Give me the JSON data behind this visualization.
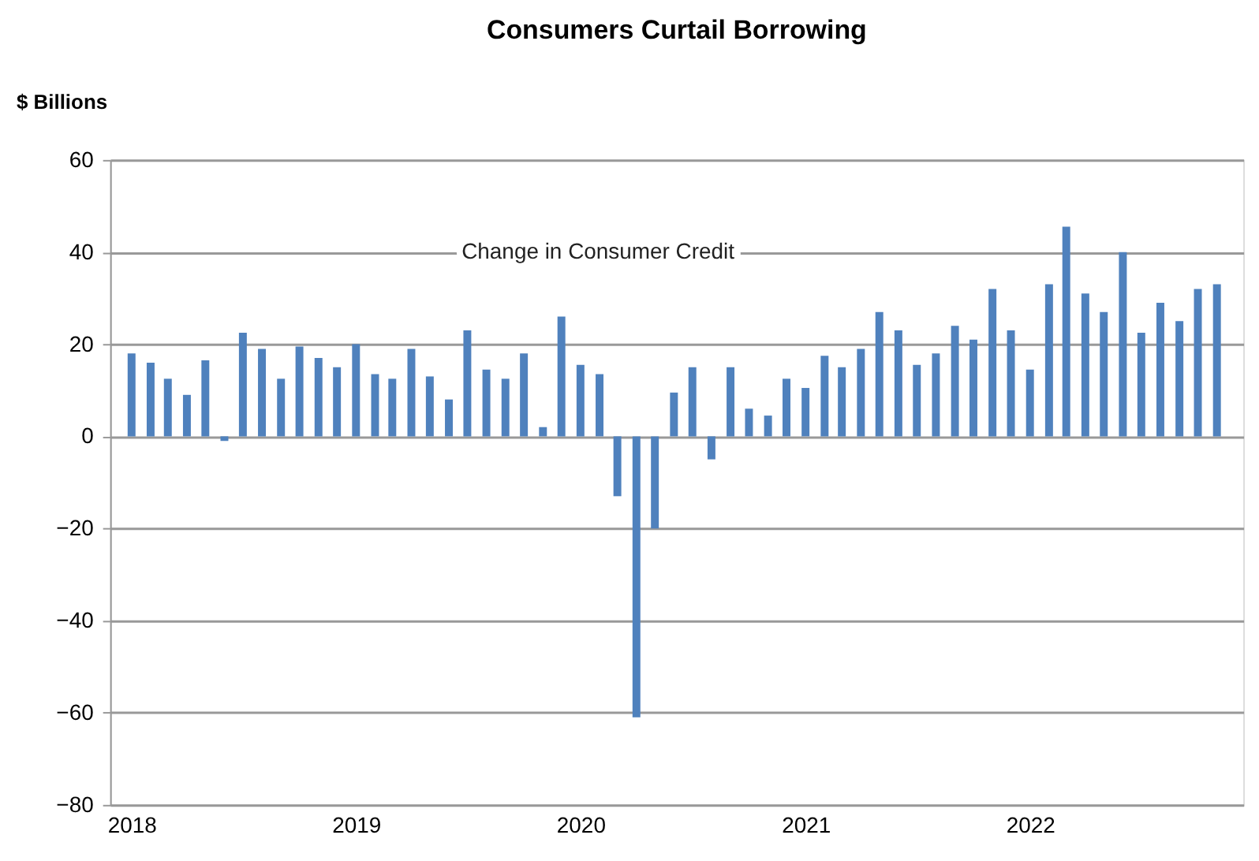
{
  "chart_data": {
    "type": "bar",
    "title": "Consumers  Curtail Borrowing",
    "ylabel": "$ Billions",
    "x": [
      "2018-01",
      "2018-02",
      "2018-03",
      "2018-04",
      "2018-05",
      "2018-06",
      "2018-07",
      "2018-08",
      "2018-09",
      "2018-10",
      "2018-11",
      "2018-12",
      "2019-01",
      "2019-02",
      "2019-03",
      "2019-04",
      "2019-05",
      "2019-06",
      "2019-07",
      "2019-08",
      "2019-09",
      "2019-10",
      "2019-11",
      "2019-12",
      "2020-01",
      "2020-02",
      "2020-03",
      "2020-04",
      "2020-05",
      "2020-06",
      "2020-07",
      "2020-08",
      "2020-09",
      "2020-10",
      "2020-11",
      "2020-12",
      "2021-01",
      "2021-02",
      "2021-03",
      "2021-04",
      "2021-05",
      "2021-06",
      "2021-07",
      "2021-08",
      "2021-09",
      "2021-10",
      "2021-11",
      "2021-12",
      "2022-01",
      "2022-02",
      "2022-03",
      "2022-04",
      "2022-05",
      "2022-06",
      "2022-07",
      "2022-08",
      "2022-09",
      "2022-10",
      "2022-11"
    ],
    "values": [
      18,
      16,
      12.5,
      9,
      16.5,
      -1,
      22.5,
      19,
      12.5,
      19.5,
      17,
      15,
      20,
      13.5,
      12.5,
      19,
      13,
      8,
      23,
      14.5,
      12.5,
      18,
      2,
      26,
      15.5,
      13.5,
      -13,
      -61,
      -20,
      9.5,
      15,
      -5,
      15,
      6,
      4.5,
      12.5,
      10.5,
      17.5,
      15,
      19,
      27,
      23,
      15.5,
      18,
      24,
      21,
      32,
      23,
      14.5,
      33,
      45.5,
      31,
      27,
      40,
      22.5,
      29,
      25,
      32,
      33
    ],
    "color": "#4f81bd",
    "xlim": [
      "2017-12-10",
      "2022-12-01"
    ],
    "xticks": [
      {
        "value": "2018-01",
        "label": "2018"
      },
      {
        "value": "2019-01",
        "label": "2019"
      },
      {
        "value": "2020-01",
        "label": "2020"
      },
      {
        "value": "2021-01",
        "label": "2021"
      },
      {
        "value": "2022-01",
        "label": "2022"
      }
    ],
    "ylim": [
      -80,
      60
    ],
    "yticks": [
      -80,
      -60,
      -40,
      -20,
      0,
      20,
      40,
      60
    ],
    "grid": "y",
    "annotations": [
      "Change in Consumer Credit"
    ]
  }
}
